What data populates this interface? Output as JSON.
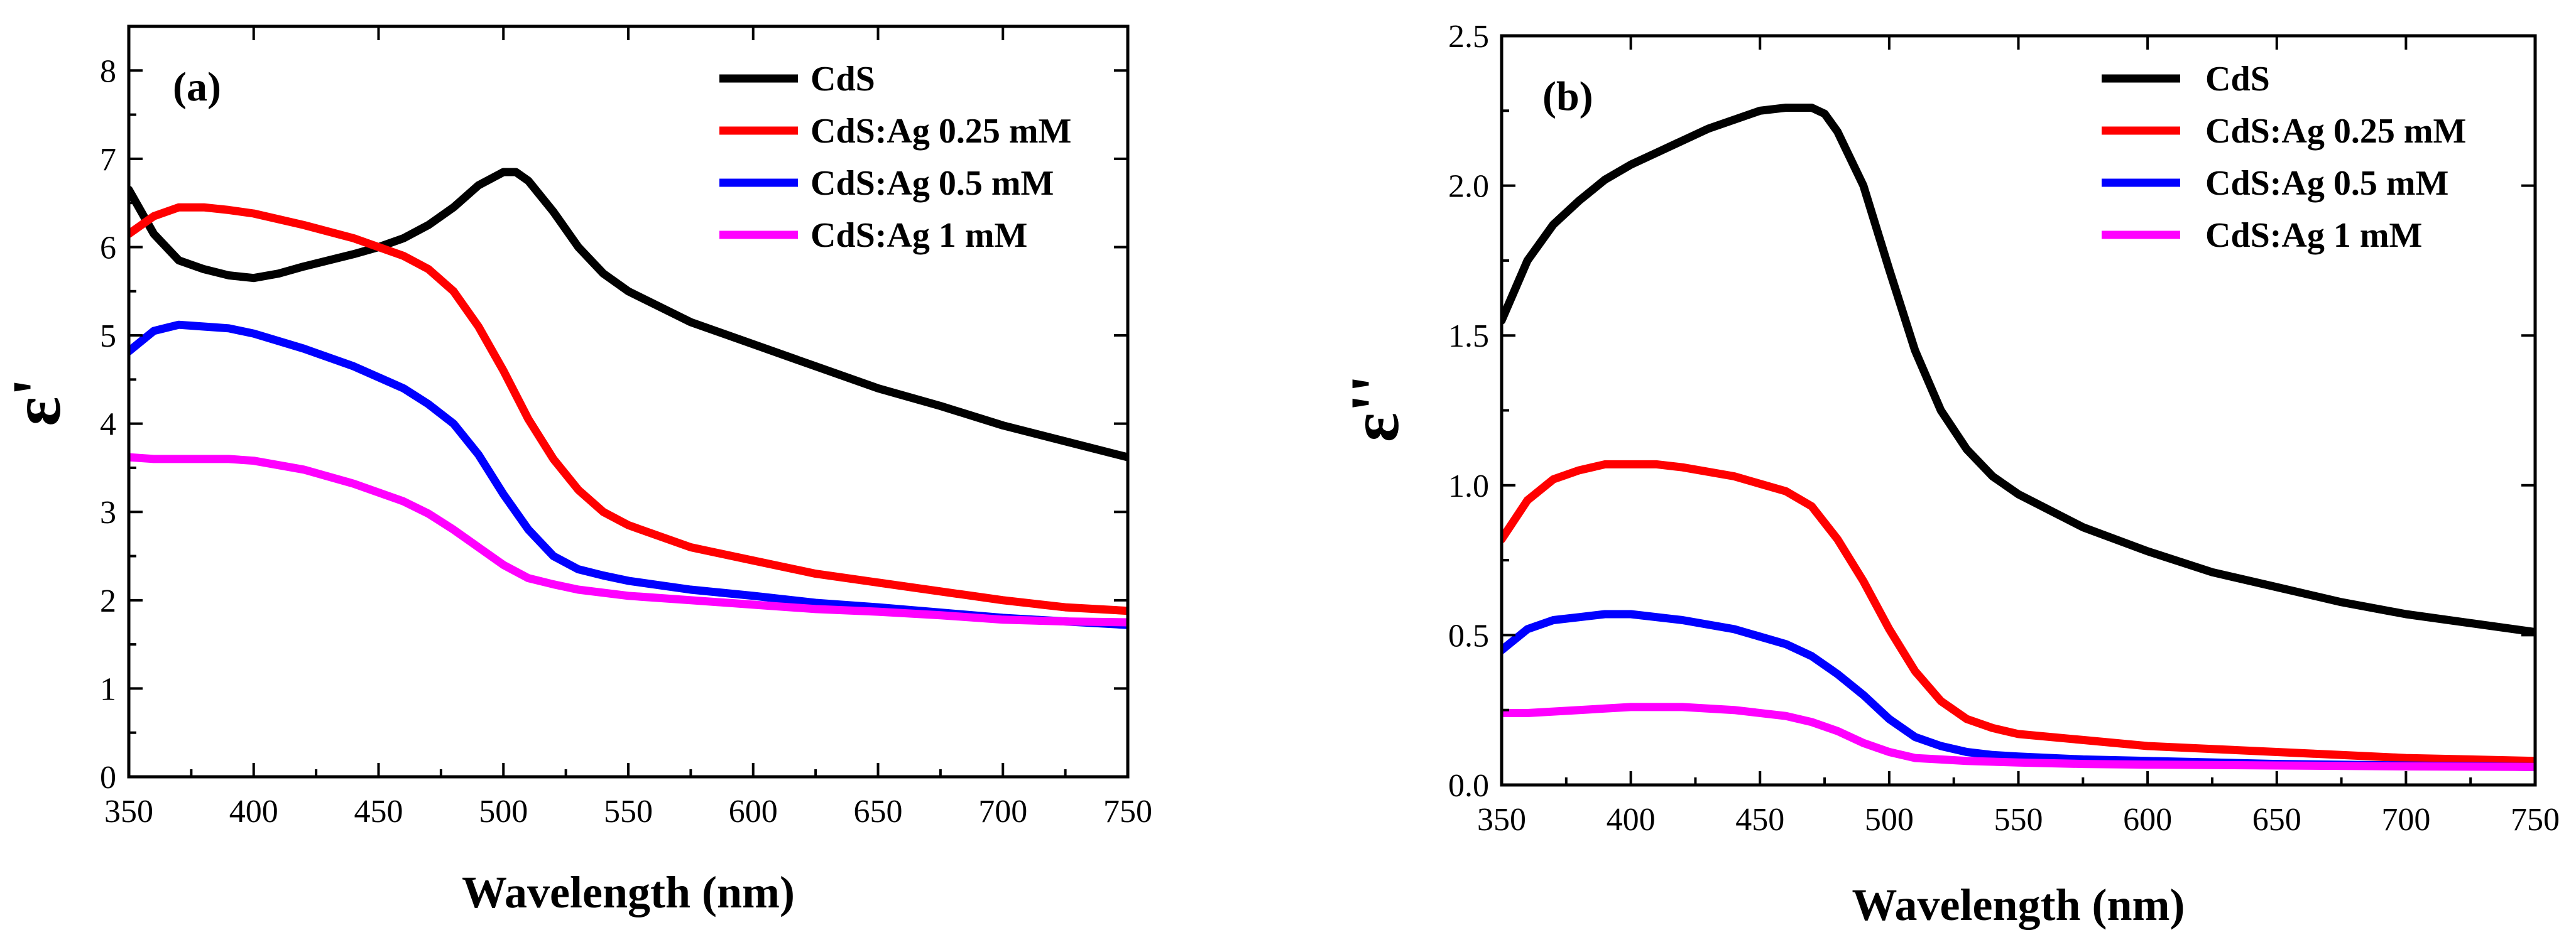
{
  "colors": {
    "CdS": "#000000",
    "CdS:Ag 0.25 mM": "#ff0000",
    "CdS:Ag 0.5 mM": "#0000ff",
    "CdS:Ag 1 mM": "#ff00ff"
  },
  "chart_data": [
    {
      "type": "line",
      "panel_label": "(a)",
      "title": "",
      "xlabel": "Wavelength (nm)",
      "ylabel": "ε'",
      "xlim": [
        350,
        750
      ],
      "ylim": [
        0,
        8.5
      ],
      "xticks": [
        "350",
        "400",
        "450",
        "500",
        "550",
        "600",
        "650",
        "700",
        "750"
      ],
      "yticks": [
        "0",
        "1",
        "2",
        "3",
        "4",
        "5",
        "6",
        "7",
        "8"
      ],
      "legend": [
        "CdS",
        "CdS:Ag 0.25 mM",
        "CdS:Ag 0.5 mM",
        "CdS:Ag 1 mM"
      ],
      "legend_position": "top-right",
      "series": [
        {
          "name": "CdS",
          "x": [
            350,
            360,
            370,
            380,
            390,
            400,
            410,
            420,
            430,
            440,
            450,
            460,
            470,
            480,
            490,
            500,
            505,
            510,
            520,
            530,
            540,
            550,
            575,
            600,
            625,
            650,
            675,
            700,
            725,
            750
          ],
          "y": [
            6.65,
            6.15,
            5.85,
            5.75,
            5.68,
            5.65,
            5.7,
            5.78,
            5.85,
            5.92,
            6.0,
            6.1,
            6.25,
            6.45,
            6.7,
            6.85,
            6.85,
            6.75,
            6.4,
            6.0,
            5.7,
            5.5,
            5.15,
            4.9,
            4.65,
            4.4,
            4.2,
            3.98,
            3.8,
            3.62
          ]
        },
        {
          "name": "CdS:Ag 0.25 mM",
          "x": [
            350,
            360,
            370,
            380,
            390,
            400,
            420,
            440,
            460,
            470,
            480,
            490,
            500,
            510,
            520,
            530,
            540,
            550,
            575,
            600,
            625,
            650,
            675,
            700,
            725,
            750
          ],
          "y": [
            6.15,
            6.35,
            6.45,
            6.45,
            6.42,
            6.38,
            6.25,
            6.1,
            5.9,
            5.75,
            5.5,
            5.1,
            4.6,
            4.05,
            3.6,
            3.25,
            3.0,
            2.85,
            2.6,
            2.45,
            2.3,
            2.2,
            2.1,
            2.0,
            1.92,
            1.88
          ]
        },
        {
          "name": "CdS:Ag 0.5 mM",
          "x": [
            350,
            360,
            370,
            380,
            390,
            400,
            420,
            440,
            460,
            470,
            480,
            490,
            500,
            510,
            520,
            530,
            540,
            550,
            575,
            600,
            625,
            650,
            675,
            700,
            725,
            750
          ],
          "y": [
            4.82,
            5.05,
            5.12,
            5.1,
            5.08,
            5.02,
            4.85,
            4.65,
            4.4,
            4.22,
            4.0,
            3.65,
            3.2,
            2.8,
            2.5,
            2.35,
            2.28,
            2.22,
            2.12,
            2.05,
            1.97,
            1.92,
            1.86,
            1.8,
            1.76,
            1.72
          ]
        },
        {
          "name": "CdS:Ag 1 mM",
          "x": [
            350,
            360,
            370,
            380,
            390,
            400,
            420,
            440,
            460,
            470,
            480,
            490,
            500,
            510,
            520,
            530,
            550,
            575,
            600,
            625,
            650,
            675,
            700,
            725,
            750
          ],
          "y": [
            3.62,
            3.6,
            3.6,
            3.6,
            3.6,
            3.58,
            3.48,
            3.32,
            3.12,
            2.98,
            2.8,
            2.6,
            2.4,
            2.25,
            2.18,
            2.12,
            2.05,
            2.0,
            1.95,
            1.9,
            1.87,
            1.83,
            1.78,
            1.76,
            1.75
          ]
        }
      ]
    },
    {
      "type": "line",
      "panel_label": "(b)",
      "title": "",
      "xlabel": "Wavelength (nm)",
      "ylabel": "ε''",
      "xlim": [
        350,
        750
      ],
      "ylim": [
        0,
        2.5
      ],
      "xticks": [
        "350",
        "400",
        "450",
        "500",
        "550",
        "600",
        "650",
        "700",
        "750"
      ],
      "yticks": [
        "0.0",
        "0.5",
        "1.0",
        "1.5",
        "2.0",
        "2.5"
      ],
      "legend": [
        "CdS",
        "CdS:Ag 0.25 mM",
        "CdS:Ag 0.5 mM",
        "CdS:Ag 1 mM"
      ],
      "legend_position": "top-right",
      "series": [
        {
          "name": "CdS",
          "x": [
            350,
            360,
            370,
            380,
            390,
            400,
            410,
            420,
            430,
            440,
            450,
            460,
            465,
            470,
            475,
            480,
            490,
            500,
            510,
            520,
            530,
            540,
            550,
            575,
            600,
            625,
            650,
            675,
            700,
            725,
            750
          ],
          "y": [
            1.55,
            1.75,
            1.87,
            1.95,
            2.02,
            2.07,
            2.11,
            2.15,
            2.19,
            2.22,
            2.25,
            2.26,
            2.26,
            2.26,
            2.24,
            2.18,
            2.0,
            1.72,
            1.45,
            1.25,
            1.12,
            1.03,
            0.97,
            0.86,
            0.78,
            0.71,
            0.66,
            0.61,
            0.57,
            0.54,
            0.51
          ]
        },
        {
          "name": "CdS:Ag 0.25 mM",
          "x": [
            350,
            360,
            370,
            380,
            390,
            400,
            410,
            420,
            440,
            460,
            470,
            480,
            490,
            500,
            510,
            520,
            530,
            540,
            550,
            575,
            600,
            625,
            650,
            675,
            700,
            725,
            750
          ],
          "y": [
            0.82,
            0.95,
            1.02,
            1.05,
            1.07,
            1.07,
            1.07,
            1.06,
            1.03,
            0.98,
            0.93,
            0.82,
            0.68,
            0.52,
            0.38,
            0.28,
            0.22,
            0.19,
            0.17,
            0.15,
            0.13,
            0.12,
            0.11,
            0.1,
            0.09,
            0.085,
            0.08
          ]
        },
        {
          "name": "CdS:Ag 0.5 mM",
          "x": [
            350,
            360,
            370,
            380,
            390,
            400,
            420,
            440,
            460,
            470,
            480,
            490,
            500,
            510,
            520,
            530,
            540,
            550,
            575,
            600,
            650,
            700,
            750
          ],
          "y": [
            0.45,
            0.52,
            0.55,
            0.56,
            0.57,
            0.57,
            0.55,
            0.52,
            0.47,
            0.43,
            0.37,
            0.3,
            0.22,
            0.16,
            0.13,
            0.11,
            0.1,
            0.095,
            0.085,
            0.08,
            0.07,
            0.065,
            0.06
          ]
        },
        {
          "name": "CdS:Ag 1 mM",
          "x": [
            350,
            360,
            380,
            400,
            420,
            440,
            460,
            470,
            480,
            490,
            500,
            510,
            520,
            530,
            550,
            575,
            600,
            650,
            700,
            750
          ],
          "y": [
            0.24,
            0.24,
            0.25,
            0.26,
            0.26,
            0.25,
            0.23,
            0.21,
            0.18,
            0.14,
            0.11,
            0.09,
            0.085,
            0.08,
            0.075,
            0.07,
            0.068,
            0.065,
            0.062,
            0.06
          ]
        }
      ]
    }
  ]
}
